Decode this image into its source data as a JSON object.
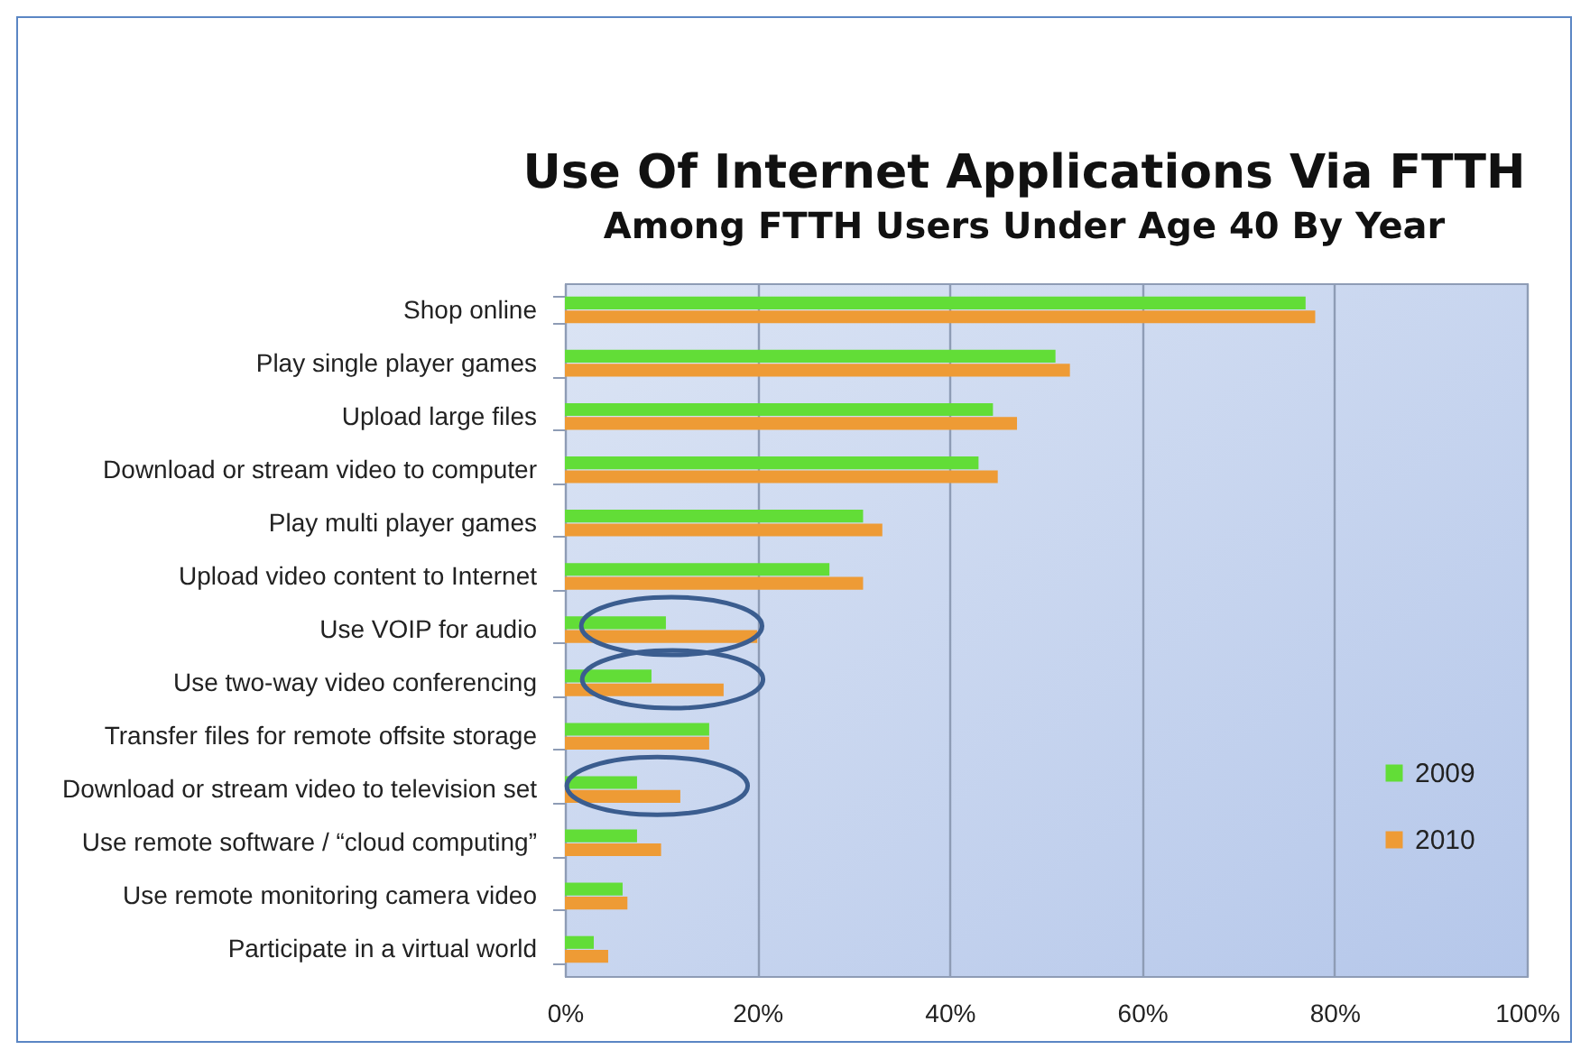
{
  "chart_data": {
    "type": "bar",
    "orientation": "horizontal",
    "title": "Use Of Internet Applications Via FTTH",
    "subtitle": "Among FTTH Users Under Age 40 By Year",
    "categories": [
      "Shop online",
      "Play single player games",
      "Upload large files",
      "Download or stream video to computer",
      "Play multi player games",
      "Upload video content to Internet",
      "Use VOIP for audio",
      "Use two-way video conferencing",
      "Transfer files for remote offsite storage",
      "Download or stream video to television set",
      "Use remote software / “cloud computing”",
      "Use remote monitoring camera video",
      "Participate in a virtual world"
    ],
    "series": [
      {
        "name": "2009",
        "color": "#62dd37",
        "values": [
          77,
          51,
          44.5,
          43,
          31,
          27.5,
          10.5,
          9,
          15,
          7.5,
          7.5,
          6,
          3
        ]
      },
      {
        "name": "2010",
        "color": "#ee9b35",
        "values": [
          78,
          52.5,
          47,
          45,
          33,
          31,
          20,
          16.5,
          15,
          12,
          10,
          6.5,
          4.5
        ]
      }
    ],
    "xlim": [
      0,
      100
    ],
    "xticks": [
      {
        "value": 0,
        "label": "0%"
      },
      {
        "value": 20,
        "label": "20%"
      },
      {
        "value": 40,
        "label": "40%"
      },
      {
        "value": 60,
        "label": "60%"
      },
      {
        "value": 80,
        "label": "80%"
      },
      {
        "value": 100,
        "label": "100%"
      }
    ],
    "grid": "x",
    "legend": "bottom right"
  }
}
